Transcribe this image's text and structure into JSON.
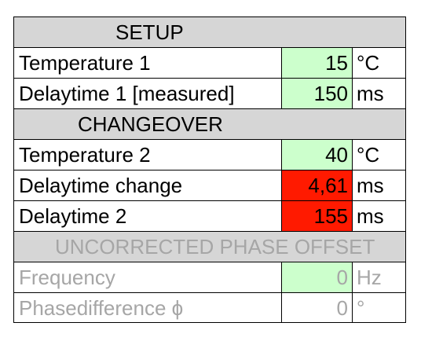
{
  "setup": {
    "header": "SETUP",
    "rows": [
      {
        "label": "Temperature 1",
        "value": "15",
        "unit": "°C"
      },
      {
        "label": "Delaytime 1 [measured]",
        "value": "150",
        "unit": "ms"
      }
    ]
  },
  "changeover": {
    "header": "CHANGEOVER",
    "rows": [
      {
        "label": "Temperature 2",
        "value": "40",
        "unit": "°C"
      },
      {
        "label": "Delaytime change",
        "value": "4,61",
        "unit": "ms"
      },
      {
        "label": "Delaytime 2",
        "value": "155",
        "unit": "ms"
      }
    ]
  },
  "uncorrected": {
    "header": "UNCORRECTED PHASE OFFSET",
    "rows": [
      {
        "label": "Frequency",
        "value": "0",
        "unit": "Hz"
      },
      {
        "label": "Phasedifference ϕ",
        "value": "0",
        "unit": "°"
      }
    ]
  },
  "colors": {
    "input_green": "#ccffcc",
    "alert_red": "#ff1a00",
    "header_gray": "#d6d6d6",
    "disabled_text": "#a6a6a6"
  }
}
